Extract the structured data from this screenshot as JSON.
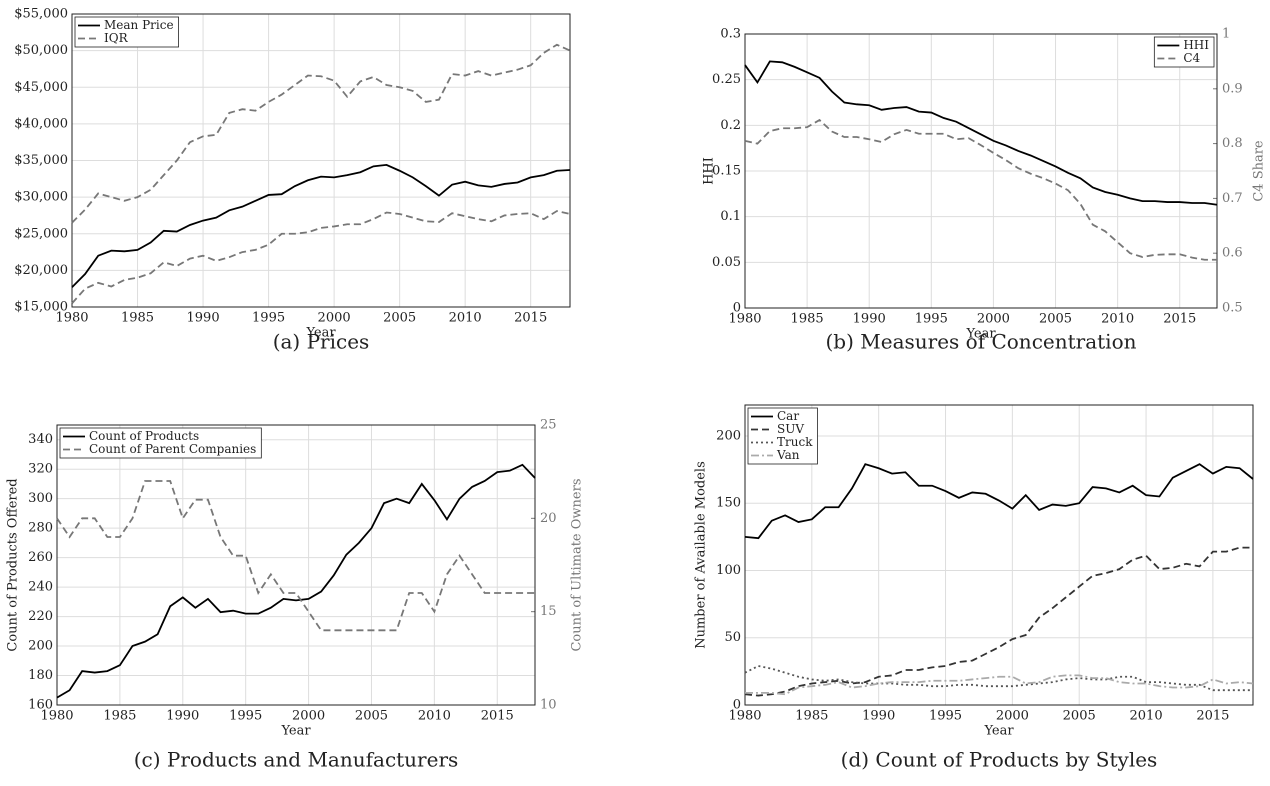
{
  "chart_data": [
    {
      "type": "line",
      "caption": "(a) Prices",
      "xlabel": "Year",
      "x": [
        1980,
        1981,
        1982,
        1983,
        1984,
        1985,
        1986,
        1987,
        1988,
        1989,
        1990,
        1991,
        1992,
        1993,
        1994,
        1995,
        1996,
        1997,
        1998,
        1999,
        2000,
        2001,
        2002,
        2003,
        2004,
        2005,
        2006,
        2007,
        2008,
        2009,
        2010,
        2011,
        2012,
        2013,
        2014,
        2015,
        2016,
        2017,
        2018
      ],
      "xlim": [
        1980,
        2018
      ],
      "xticks": [
        1980,
        1985,
        1990,
        1995,
        2000,
        2005,
        2010,
        2015
      ],
      "ylim": [
        15000,
        55000
      ],
      "yticks": [
        {
          "value": 15000,
          "label": "$15,000"
        },
        {
          "value": 20000,
          "label": "$20,000"
        },
        {
          "value": 25000,
          "label": "$25,000"
        },
        {
          "value": 30000,
          "label": "$30,000"
        },
        {
          "value": 35000,
          "label": "$35,000"
        },
        {
          "value": 40000,
          "label": "$40,000"
        },
        {
          "value": 45000,
          "label": "$45,000"
        },
        {
          "value": 50000,
          "label": "$50,000"
        },
        {
          "value": 55000,
          "label": "$55,000"
        }
      ],
      "grid": true,
      "legend": "upper left",
      "series": [
        {
          "name": "Mean Price",
          "color": "#000000",
          "dash": "solid",
          "values": [
            17700,
            19500,
            22000,
            22700,
            22600,
            22800,
            23800,
            25400,
            25300,
            26200,
            26800,
            27200,
            28200,
            28700,
            29500,
            30300,
            30400,
            31500,
            32300,
            32800,
            32700,
            33000,
            33400,
            34200,
            34400,
            33600,
            32700,
            31500,
            30200,
            31700,
            32100,
            31600,
            31400,
            31800,
            32000,
            32700,
            33000,
            33600,
            33700
          ]
        },
        {
          "name": "IQR",
          "color": "#777777",
          "dash": "dashed",
          "upper": [
            26500,
            28300,
            30500,
            30000,
            29500,
            30000,
            31000,
            33000,
            35000,
            37500,
            38300,
            38500,
            41500,
            42000,
            41800,
            43000,
            44000,
            45300,
            46600,
            46500,
            45900,
            43700,
            45800,
            46400,
            45300,
            45000,
            44500,
            43000,
            43300,
            46800,
            46600,
            47200,
            46600,
            47000,
            47400,
            48000,
            49700,
            50800,
            50000
          ],
          "lower": [
            15500,
            17500,
            18300,
            17800,
            18700,
            19000,
            19600,
            21100,
            20600,
            21600,
            22000,
            21300,
            21800,
            22500,
            22800,
            23500,
            25000,
            25000,
            25200,
            25800,
            26000,
            26300,
            26300,
            27000,
            27900,
            27700,
            27200,
            26700,
            26600,
            27800,
            27400,
            27000,
            26700,
            27500,
            27700,
            27800,
            27000,
            28100,
            27700
          ]
        }
      ]
    },
    {
      "type": "line",
      "caption": "(b) Measures of Concentration",
      "xlabel": "Year",
      "ylabel": "HHI",
      "y2label": "C4 Share",
      "x": [
        1980,
        1981,
        1982,
        1983,
        1984,
        1985,
        1986,
        1987,
        1988,
        1989,
        1990,
        1991,
        1992,
        1993,
        1994,
        1995,
        1996,
        1997,
        1998,
        1999,
        2000,
        2001,
        2002,
        2003,
        2004,
        2005,
        2006,
        2007,
        2008,
        2009,
        2010,
        2011,
        2012,
        2013,
        2014,
        2015,
        2016,
        2017,
        2018
      ],
      "xlim": [
        1980,
        2018
      ],
      "xticks": [
        1980,
        1985,
        1990,
        1995,
        2000,
        2005,
        2010,
        2015
      ],
      "ylim": [
        0,
        0.3
      ],
      "yticks": [
        0,
        0.05,
        0.1,
        0.15,
        0.2,
        0.25,
        0.3
      ],
      "y2lim": [
        0.5,
        1
      ],
      "y2ticks": [
        0.5,
        0.6,
        0.7,
        0.8,
        0.9,
        1
      ],
      "grid": true,
      "legend": "upper right",
      "series": [
        {
          "name": "HHI",
          "color": "#000000",
          "dash": "solid",
          "values": [
            0.266,
            0.247,
            0.27,
            0.269,
            0.264,
            0.258,
            0.252,
            0.237,
            0.225,
            0.223,
            0.222,
            0.217,
            0.219,
            0.22,
            0.215,
            0.214,
            0.208,
            0.204,
            0.197,
            0.19,
            0.183,
            0.178,
            0.172,
            0.167,
            0.161,
            0.155,
            0.148,
            0.142,
            0.132,
            0.127,
            0.124,
            0.12,
            0.117,
            0.117,
            0.116,
            0.116,
            0.115,
            0.115,
            0.113
          ]
        },
        {
          "name": "C4",
          "color": "#777777",
          "dash": "dashed",
          "axis": "y2",
          "values": [
            0.805,
            0.8,
            0.823,
            0.828,
            0.828,
            0.83,
            0.843,
            0.822,
            0.812,
            0.812,
            0.808,
            0.803,
            0.817,
            0.825,
            0.818,
            0.818,
            0.818,
            0.808,
            0.81,
            0.797,
            0.783,
            0.77,
            0.755,
            0.745,
            0.737,
            0.727,
            0.715,
            0.69,
            0.652,
            0.64,
            0.62,
            0.6,
            0.593,
            0.597,
            0.598,
            0.598,
            0.592,
            0.588,
            0.588
          ]
        }
      ]
    },
    {
      "type": "line",
      "caption": "(c) Products and Manufacturers",
      "xlabel": "Year",
      "ylabel": "Count of Products Offered",
      "y2label": "Count of Ultimate Owners",
      "x": [
        1980,
        1981,
        1982,
        1983,
        1984,
        1985,
        1986,
        1987,
        1988,
        1989,
        1990,
        1991,
        1992,
        1993,
        1994,
        1995,
        1996,
        1997,
        1998,
        1999,
        2000,
        2001,
        2002,
        2003,
        2004,
        2005,
        2006,
        2007,
        2008,
        2009,
        2010,
        2011,
        2012,
        2013,
        2014,
        2015,
        2016,
        2017,
        2018
      ],
      "xlim": [
        1980,
        2018
      ],
      "xticks": [
        1980,
        1985,
        1990,
        1995,
        2000,
        2005,
        2010,
        2015
      ],
      "ylim": [
        160,
        350
      ],
      "yticks": [
        160,
        180,
        200,
        220,
        240,
        260,
        280,
        300,
        320,
        340
      ],
      "y2lim": [
        10,
        25
      ],
      "y2ticks": [
        10,
        15,
        20,
        25
      ],
      "grid": true,
      "legend": "upper left",
      "series": [
        {
          "name": "Count of Products",
          "color": "#000000",
          "dash": "solid",
          "values": [
            165,
            170,
            183,
            182,
            183,
            187,
            200,
            203,
            208,
            227,
            233,
            226,
            232,
            223,
            224,
            222,
            222,
            226,
            232,
            231,
            232,
            237,
            248,
            262,
            270,
            280,
            297,
            300,
            297,
            310,
            299,
            286,
            300,
            308,
            312,
            318,
            319,
            323,
            314
          ]
        },
        {
          "name": "Count of Parent Companies",
          "color": "#777777",
          "dash": "dashed",
          "axis": "y2",
          "values": [
            20,
            19,
            20,
            20,
            19,
            19,
            20,
            22,
            22,
            22,
            20,
            21,
            21,
            19,
            18,
            18,
            16,
            17,
            16,
            16,
            15,
            14,
            14,
            14,
            14,
            14,
            14,
            14,
            16,
            16,
            15,
            17,
            18,
            17,
            16,
            16,
            16,
            16,
            16
          ]
        }
      ]
    },
    {
      "type": "line",
      "caption": "(d) Count of Products by Styles",
      "xlabel": "Year",
      "ylabel": "Number of Available Models",
      "x": [
        1980,
        1981,
        1982,
        1983,
        1984,
        1985,
        1986,
        1987,
        1988,
        1989,
        1990,
        1991,
        1992,
        1993,
        1994,
        1995,
        1996,
        1997,
        1998,
        1999,
        2000,
        2001,
        2002,
        2003,
        2004,
        2005,
        2006,
        2007,
        2008,
        2009,
        2010,
        2011,
        2012,
        2013,
        2014,
        2015,
        2016,
        2017,
        2018
      ],
      "xlim": [
        1980,
        2018
      ],
      "xticks": [
        1980,
        1985,
        1990,
        1995,
        2000,
        2005,
        2010,
        2015
      ],
      "ylim": [
        0,
        223
      ],
      "yticks": [
        0,
        50,
        100,
        150,
        200
      ],
      "grid": true,
      "legend": "upper left",
      "series": [
        {
          "name": "Car",
          "color": "#000000",
          "dash": "solid",
          "values": [
            125,
            124,
            137,
            141,
            136,
            138,
            147,
            147,
            161,
            179,
            176,
            172,
            173,
            163,
            163,
            159,
            154,
            158,
            157,
            152,
            146,
            156,
            145,
            149,
            148,
            150,
            162,
            161,
            158,
            163,
            156,
            155,
            169,
            174,
            179,
            172,
            177,
            176,
            168
          ]
        },
        {
          "name": "SUV",
          "color": "#333333",
          "dash": "dashed",
          "values": [
            8,
            7,
            8,
            10,
            14,
            16,
            17,
            18,
            16,
            17,
            21,
            22,
            26,
            26,
            28,
            29,
            32,
            33,
            38,
            43,
            49,
            52,
            65,
            72,
            80,
            88,
            96,
            98,
            101,
            108,
            111,
            101,
            102,
            105,
            103,
            114,
            114,
            117,
            117
          ]
        },
        {
          "name": "Truck",
          "color": "#555555",
          "dash": "dotted",
          "values": [
            24,
            29,
            27,
            24,
            21,
            19,
            18,
            19,
            17,
            16,
            16,
            16,
            15,
            15,
            14,
            14,
            15,
            15,
            14,
            14,
            14,
            15,
            16,
            17,
            19,
            20,
            19,
            19,
            21,
            21,
            17,
            17,
            16,
            15,
            15,
            11,
            11,
            11,
            11
          ]
        },
        {
          "name": "Van",
          "color": "#aaaaaa",
          "dash": "dashdot",
          "values": [
            9,
            9,
            9,
            8,
            13,
            14,
            15,
            17,
            13,
            14,
            16,
            17,
            17,
            17,
            18,
            18,
            18,
            19,
            20,
            21,
            21,
            16,
            17,
            21,
            22,
            22,
            20,
            20,
            17,
            16,
            16,
            14,
            13,
            13,
            14,
            19,
            16,
            17,
            16
          ]
        }
      ]
    }
  ]
}
